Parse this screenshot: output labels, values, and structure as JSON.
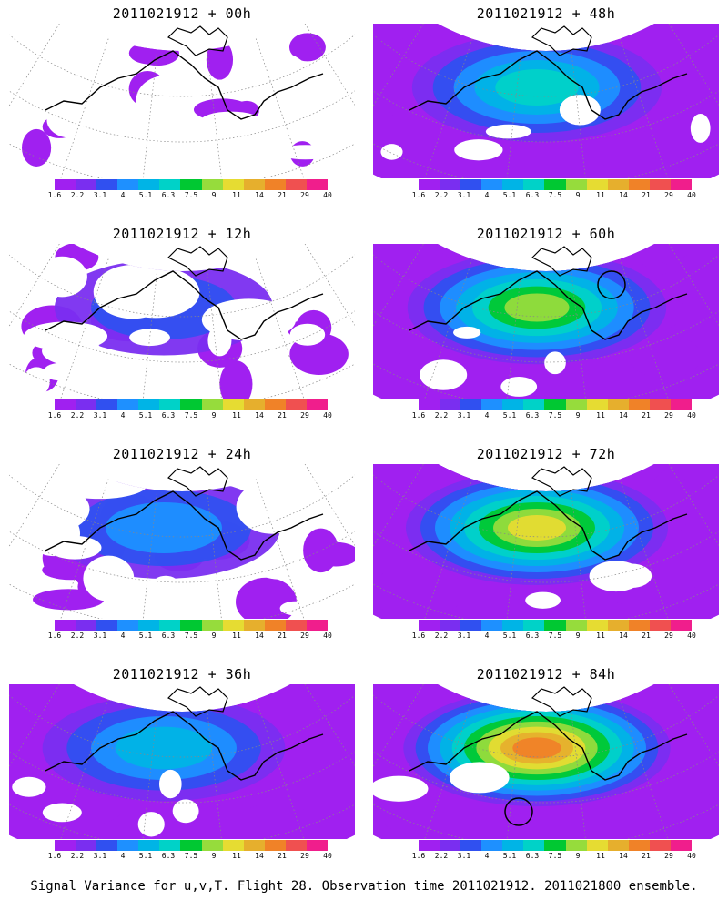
{
  "panels": [
    {
      "title": "2011021912 + 00h",
      "intensity": 0.04,
      "col": 0,
      "row": 0
    },
    {
      "title": "2011021912 + 48h",
      "intensity": 0.45,
      "col": 1,
      "row": 0
    },
    {
      "title": "2011021912 + 12h",
      "intensity": 0.16,
      "col": 0,
      "row": 1
    },
    {
      "title": "2011021912 + 60h",
      "intensity": 0.6,
      "col": 1,
      "row": 1,
      "marker": "circle"
    },
    {
      "title": "2011021912 + 24h",
      "intensity": 0.26,
      "col": 0,
      "row": 2
    },
    {
      "title": "2011021912 + 72h",
      "intensity": 0.75,
      "col": 1,
      "row": 2
    },
    {
      "title": "2011021912 + 36h",
      "intensity": 0.36,
      "col": 0,
      "row": 3
    },
    {
      "title": "2011021912 + 84h",
      "intensity": 0.9,
      "col": 1,
      "row": 3,
      "marker": "circle"
    }
  ],
  "colorbar": {
    "labels": [
      "1.6",
      "2.2",
      "3.1",
      "4",
      "5.1",
      "6.3",
      "7.5",
      "9",
      "11",
      "14",
      "21",
      "29",
      "40"
    ],
    "colors": [
      "#a020f0",
      "#7a2ef0",
      "#3050f0",
      "#1e90ff",
      "#00b4e6",
      "#00d2c8",
      "#00c832",
      "#96dc3c",
      "#e6dc32",
      "#e6af2d",
      "#f08228",
      "#f05050",
      "#f01e8c"
    ]
  },
  "caption": "Signal Variance for u,v,T. Flight 28. Observation time 2011021912. 2011021800 ensemble."
}
